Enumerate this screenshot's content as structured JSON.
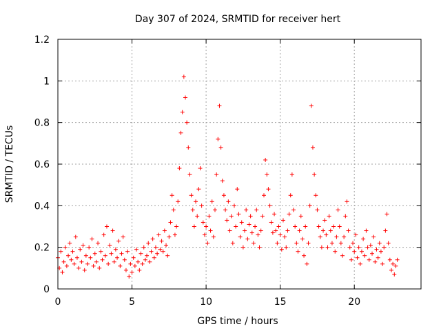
{
  "chart_data": {
    "type": "scatter",
    "title": "Day 307 of 2024, SRMTID for receiver hert",
    "xlabel": "GPS time / hours",
    "ylabel": "SRMTID / TECUs",
    "xlim": [
      0,
      24.5
    ],
    "ylim": [
      0,
      1.2
    ],
    "xticks": [
      0,
      5,
      10,
      15,
      20
    ],
    "xtick_labels": [
      "0",
      "5",
      "10",
      "15",
      "20"
    ],
    "yticks": [
      0,
      0.2,
      0.4,
      0.6,
      0.8,
      1.0,
      1.2
    ],
    "ytick_labels": [
      "0",
      "0.2",
      "0.4",
      "0.6",
      "0.8",
      "1",
      "1.2"
    ],
    "grid": true,
    "marker": "+",
    "color": "#ff0000",
    "series": [
      {
        "name": "SRMTID",
        "points": [
          [
            0.0,
            0.15
          ],
          [
            0.1,
            0.1
          ],
          [
            0.2,
            0.18
          ],
          [
            0.3,
            0.08
          ],
          [
            0.4,
            0.13
          ],
          [
            0.5,
            0.2
          ],
          [
            0.6,
            0.11
          ],
          [
            0.7,
            0.16
          ],
          [
            0.8,
            0.22
          ],
          [
            0.9,
            0.14
          ],
          [
            1.0,
            0.18
          ],
          [
            1.1,
            0.12
          ],
          [
            1.2,
            0.25
          ],
          [
            1.3,
            0.15
          ],
          [
            1.4,
            0.1
          ],
          [
            1.5,
            0.19
          ],
          [
            1.6,
            0.13
          ],
          [
            1.7,
            0.21
          ],
          [
            1.8,
            0.09
          ],
          [
            1.9,
            0.16
          ],
          [
            2.0,
            0.12
          ],
          [
            2.1,
            0.2
          ],
          [
            2.2,
            0.15
          ],
          [
            2.3,
            0.24
          ],
          [
            2.4,
            0.11
          ],
          [
            2.5,
            0.17
          ],
          [
            2.6,
            0.13
          ],
          [
            2.7,
            0.22
          ],
          [
            2.8,
            0.1
          ],
          [
            2.9,
            0.18
          ],
          [
            3.0,
            0.14
          ],
          [
            3.1,
            0.26
          ],
          [
            3.2,
            0.16
          ],
          [
            3.3,
            0.3
          ],
          [
            3.4,
            0.12
          ],
          [
            3.5,
            0.21
          ],
          [
            3.6,
            0.17
          ],
          [
            3.7,
            0.28
          ],
          [
            3.8,
            0.13
          ],
          [
            3.9,
            0.19
          ],
          [
            4.0,
            0.15
          ],
          [
            4.1,
            0.23
          ],
          [
            4.2,
            0.11
          ],
          [
            4.3,
            0.17
          ],
          [
            4.4,
            0.25
          ],
          [
            4.5,
            0.14
          ],
          [
            4.6,
            0.09
          ],
          [
            4.7,
            0.18
          ],
          [
            4.8,
            0.06
          ],
          [
            4.9,
            0.12
          ],
          [
            5.0,
            0.08
          ],
          [
            5.1,
            0.15
          ],
          [
            5.2,
            0.11
          ],
          [
            5.3,
            0.19
          ],
          [
            5.4,
            0.13
          ],
          [
            5.5,
            0.09
          ],
          [
            5.6,
            0.17
          ],
          [
            5.7,
            0.12
          ],
          [
            5.8,
            0.2
          ],
          [
            5.9,
            0.14
          ],
          [
            6.0,
            0.16
          ],
          [
            6.1,
            0.22
          ],
          [
            6.2,
            0.13
          ],
          [
            6.3,
            0.18
          ],
          [
            6.4,
            0.24
          ],
          [
            6.5,
            0.15
          ],
          [
            6.6,
            0.2
          ],
          [
            6.7,
            0.17
          ],
          [
            6.8,
            0.26
          ],
          [
            6.9,
            0.19
          ],
          [
            7.0,
            0.23
          ],
          [
            7.1,
            0.18
          ],
          [
            7.2,
            0.28
          ],
          [
            7.3,
            0.21
          ],
          [
            7.4,
            0.16
          ],
          [
            7.5,
            0.25
          ],
          [
            7.6,
            0.32
          ],
          [
            7.7,
            0.45
          ],
          [
            7.8,
            0.38
          ],
          [
            7.9,
            0.26
          ],
          [
            8.0,
            0.3
          ],
          [
            8.1,
            0.42
          ],
          [
            8.2,
            0.58
          ],
          [
            8.3,
            0.75
          ],
          [
            8.4,
            0.85
          ],
          [
            8.5,
            1.02
          ],
          [
            8.6,
            0.92
          ],
          [
            8.7,
            0.8
          ],
          [
            8.8,
            0.68
          ],
          [
            8.9,
            0.55
          ],
          [
            9.0,
            0.45
          ],
          [
            9.1,
            0.38
          ],
          [
            9.2,
            0.3
          ],
          [
            9.3,
            0.42
          ],
          [
            9.4,
            0.35
          ],
          [
            9.5,
            0.48
          ],
          [
            9.6,
            0.58
          ],
          [
            9.7,
            0.4
          ],
          [
            9.8,
            0.32
          ],
          [
            9.9,
            0.26
          ],
          [
            10.0,
            0.3
          ],
          [
            10.1,
            0.22
          ],
          [
            10.2,
            0.35
          ],
          [
            10.3,
            0.28
          ],
          [
            10.4,
            0.42
          ],
          [
            10.5,
            0.25
          ],
          [
            10.6,
            0.38
          ],
          [
            10.7,
            0.55
          ],
          [
            10.8,
            0.72
          ],
          [
            10.9,
            0.88
          ],
          [
            11.0,
            0.68
          ],
          [
            11.1,
            0.52
          ],
          [
            11.2,
            0.45
          ],
          [
            11.3,
            0.38
          ],
          [
            11.4,
            0.33
          ],
          [
            11.5,
            0.42
          ],
          [
            11.6,
            0.28
          ],
          [
            11.7,
            0.35
          ],
          [
            11.8,
            0.22
          ],
          [
            11.9,
            0.4
          ],
          [
            12.0,
            0.3
          ],
          [
            12.1,
            0.48
          ],
          [
            12.2,
            0.36
          ],
          [
            12.3,
            0.25
          ],
          [
            12.4,
            0.32
          ],
          [
            12.5,
            0.2
          ],
          [
            12.6,
            0.28
          ],
          [
            12.7,
            0.38
          ],
          [
            12.8,
            0.24
          ],
          [
            12.9,
            0.31
          ],
          [
            13.0,
            0.35
          ],
          [
            13.1,
            0.27
          ],
          [
            13.2,
            0.22
          ],
          [
            13.3,
            0.3
          ],
          [
            13.4,
            0.38
          ],
          [
            13.5,
            0.26
          ],
          [
            13.6,
            0.2
          ],
          [
            13.7,
            0.28
          ],
          [
            13.8,
            0.35
          ],
          [
            13.9,
            0.45
          ],
          [
            14.0,
            0.62
          ],
          [
            14.1,
            0.55
          ],
          [
            14.2,
            0.48
          ],
          [
            14.3,
            0.4
          ],
          [
            14.4,
            0.32
          ],
          [
            14.5,
            0.27
          ],
          [
            14.6,
            0.36
          ],
          [
            14.7,
            0.28
          ],
          [
            14.8,
            0.22
          ],
          [
            14.9,
            0.3
          ],
          [
            15.0,
            0.26
          ],
          [
            15.1,
            0.19
          ],
          [
            15.2,
            0.33
          ],
          [
            15.3,
            0.25
          ],
          [
            15.4,
            0.2
          ],
          [
            15.5,
            0.28
          ],
          [
            15.6,
            0.36
          ],
          [
            15.7,
            0.45
          ],
          [
            15.8,
            0.55
          ],
          [
            15.9,
            0.38
          ],
          [
            16.0,
            0.3
          ],
          [
            16.1,
            0.22
          ],
          [
            16.2,
            0.18
          ],
          [
            16.3,
            0.28
          ],
          [
            16.4,
            0.35
          ],
          [
            16.5,
            0.24
          ],
          [
            16.6,
            0.16
          ],
          [
            16.7,
            0.3
          ],
          [
            16.8,
            0.12
          ],
          [
            16.9,
            0.22
          ],
          [
            17.0,
            0.4
          ],
          [
            17.1,
            0.88
          ],
          [
            17.2,
            0.68
          ],
          [
            17.3,
            0.55
          ],
          [
            17.4,
            0.45
          ],
          [
            17.5,
            0.38
          ],
          [
            17.6,
            0.3
          ],
          [
            17.7,
            0.25
          ],
          [
            17.8,
            0.2
          ],
          [
            17.9,
            0.28
          ],
          [
            18.0,
            0.33
          ],
          [
            18.1,
            0.26
          ],
          [
            18.2,
            0.2
          ],
          [
            18.3,
            0.35
          ],
          [
            18.4,
            0.28
          ],
          [
            18.5,
            0.22
          ],
          [
            18.6,
            0.3
          ],
          [
            18.7,
            0.18
          ],
          [
            18.8,
            0.25
          ],
          [
            18.9,
            0.38
          ],
          [
            19.0,
            0.3
          ],
          [
            19.1,
            0.22
          ],
          [
            19.2,
            0.16
          ],
          [
            19.3,
            0.25
          ],
          [
            19.4,
            0.35
          ],
          [
            19.5,
            0.42
          ],
          [
            19.6,
            0.28
          ],
          [
            19.7,
            0.2
          ],
          [
            19.8,
            0.14
          ],
          [
            19.9,
            0.22
          ],
          [
            20.0,
            0.18
          ],
          [
            20.1,
            0.26
          ],
          [
            20.2,
            0.15
          ],
          [
            20.3,
            0.2
          ],
          [
            20.4,
            0.12
          ],
          [
            20.5,
            0.18
          ],
          [
            20.6,
            0.24
          ],
          [
            20.7,
            0.16
          ],
          [
            20.8,
            0.28
          ],
          [
            20.9,
            0.2
          ],
          [
            21.0,
            0.14
          ],
          [
            21.1,
            0.21
          ],
          [
            21.2,
            0.17
          ],
          [
            21.3,
            0.25
          ],
          [
            21.4,
            0.13
          ],
          [
            21.5,
            0.19
          ],
          [
            21.6,
            0.15
          ],
          [
            21.7,
            0.22
          ],
          [
            21.8,
            0.18
          ],
          [
            21.9,
            0.12
          ],
          [
            22.0,
            0.2
          ],
          [
            22.1,
            0.28
          ],
          [
            22.2,
            0.36
          ],
          [
            22.3,
            0.22
          ],
          [
            22.4,
            0.14
          ],
          [
            22.5,
            0.09
          ],
          [
            22.6,
            0.12
          ],
          [
            22.7,
            0.07
          ],
          [
            22.8,
            0.11
          ],
          [
            22.9,
            0.14
          ]
        ]
      }
    ]
  }
}
